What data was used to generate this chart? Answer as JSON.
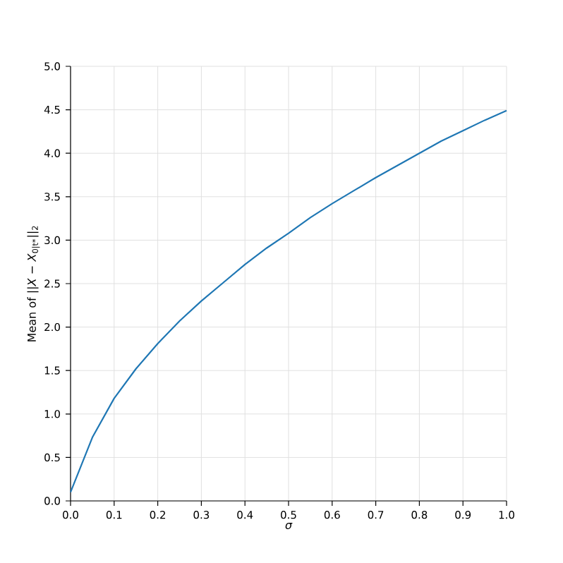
{
  "chart_data": {
    "type": "line",
    "xlabel": "σ",
    "ylabel": "Mean of ||*X* − *X*$_{0|t*}$||$_{2}$",
    "x": [
      0,
      0.05,
      0.1,
      0.15,
      0.2,
      0.25,
      0.3,
      0.35,
      0.4,
      0.45,
      0.5,
      0.55,
      0.6,
      0.65,
      0.7,
      0.75,
      0.8,
      0.85,
      0.9,
      0.95,
      1.0
    ],
    "series": [
      {
        "color": "#1f77b4",
        "values": [
          0.1,
          0.73,
          1.18,
          1.52,
          1.81,
          2.07,
          2.3,
          2.51,
          2.72,
          2.91,
          3.08,
          3.26,
          3.42,
          3.57,
          3.72,
          3.86,
          4.0,
          4.14,
          4.26,
          4.38,
          4.49
        ]
      }
    ],
    "xlim": [
      0.0,
      1.0
    ],
    "ylim": [
      0.0,
      5.0
    ],
    "xticks": [
      {
        "value": 0,
        "label": "0.0"
      },
      0.1,
      0.2,
      0.3,
      0.4,
      0.5,
      0.6,
      0.7,
      0.8,
      0.9,
      {
        "value": 1,
        "label": "1.0"
      }
    ],
    "yticks": [
      {
        "value": 0,
        "label": "0.0"
      },
      0.5,
      {
        "value": 1,
        "label": "1.0"
      },
      1.5,
      {
        "value": 2,
        "label": "2.0"
      },
      2.5,
      {
        "value": 3,
        "label": "3.0"
      },
      3.5,
      {
        "value": 4,
        "label": "4.0"
      },
      4.5,
      {
        "value": 5,
        "label": "5.0"
      }
    ],
    "grid": true,
    "line_style": "solid",
    "marker": "none"
  }
}
